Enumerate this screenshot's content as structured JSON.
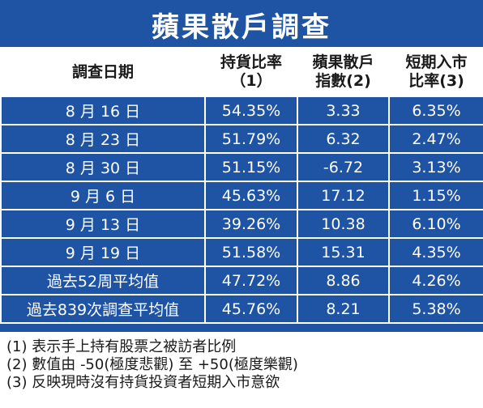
{
  "title": "蘋果散戶調查",
  "headers": {
    "date": "調查日期",
    "holding_l1": "持貨比率",
    "holding_l2": "（1）",
    "index_l1": "蘋果散戶",
    "index_l2": "指數(2)",
    "entry_l1": "短期入市",
    "entry_l2": "比率(3)"
  },
  "rows": [
    {
      "label": "8 月 16 日",
      "holding": "54.35%",
      "index": "3.33",
      "entry": "6.35%"
    },
    {
      "label": "8 月 23 日",
      "holding": "51.79%",
      "index": "6.32",
      "entry": "2.47%"
    },
    {
      "label": "8 月 30 日",
      "holding": "51.15%",
      "index": "-6.72",
      "entry": "3.13%"
    },
    {
      "label": "9 月 6 日",
      "holding": "45.63%",
      "index": "17.12",
      "entry": "1.15%"
    },
    {
      "label": "9 月 13 日",
      "holding": "39.26%",
      "index": "10.38",
      "entry": "6.10%"
    },
    {
      "label": "9 月 19 日",
      "holding": "51.58%",
      "index": "15.31",
      "entry": "4.35%"
    },
    {
      "label": "過去52周平均值",
      "holding": "47.72%",
      "index": "8.86",
      "entry": "4.26%"
    },
    {
      "label": "過去839次調查平均值",
      "holding": "45.76%",
      "index": "8.21",
      "entry": "5.38%"
    }
  ],
  "notes": [
    "(1) 表示手上持有股票之被訪者比例",
    "(2) 數值由 -50(極度悲觀) 至 +50(極度樂觀)",
    "(3) 反映現時沒有持貨投資者短期入市意欲"
  ],
  "colors": {
    "accent": "#1e54a3",
    "text_light": "#ffffff",
    "text_dark": "#1a1a1a"
  }
}
